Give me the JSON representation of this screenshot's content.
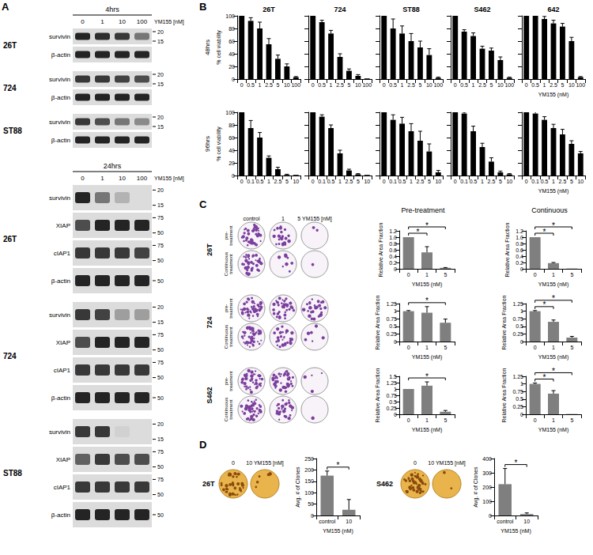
{
  "panel_a": {
    "letter": "A",
    "blocks": [
      {
        "time": "4hrs",
        "doses": [
          "0",
          "1",
          "10",
          "100"
        ],
        "unit": "YM155 [nM]",
        "groups": [
          {
            "cell": "26T",
            "rows": [
              {
                "protein": "survivin",
                "markers": [
                  "20",
                  "15"
                ],
                "bands": [
                  0.9,
                  0.85,
                  0.8,
                  0.5
                ]
              },
              {
                "protein": "β-actin",
                "markers": [],
                "bands": [
                  0.9,
                  0.9,
                  0.9,
                  0.9
                ]
              }
            ]
          },
          {
            "cell": "724",
            "rows": [
              {
                "protein": "survivin",
                "markers": [
                  "20",
                  "15"
                ],
                "bands": [
                  0.8,
                  0.8,
                  0.75,
                  0.7
                ]
              },
              {
                "protein": "β-actin",
                "markers": [],
                "bands": [
                  0.9,
                  0.9,
                  0.9,
                  0.9
                ]
              }
            ]
          },
          {
            "cell": "ST88",
            "rows": [
              {
                "protein": "survivin",
                "markers": [
                  "20",
                  "15"
                ],
                "bands": [
                  0.8,
                  0.7,
                  0.5,
                  0.4
                ]
              },
              {
                "protein": "β-actin",
                "markers": [],
                "bands": [
                  0.9,
                  0.9,
                  0.9,
                  0.9
                ]
              }
            ]
          }
        ]
      },
      {
        "time": "24hrs",
        "doses": [
          "0",
          "1",
          "10",
          "100"
        ],
        "unit": "YM155 [nM]",
        "groups": [
          {
            "cell": "26T",
            "rows": [
              {
                "protein": "survivin",
                "markers": [
                  "20",
                  "15"
                ],
                "bands": [
                  0.9,
                  0.5,
                  0.2,
                  0.0
                ]
              },
              {
                "protein": "XIAP",
                "markers": [
                  "75",
                  "50"
                ],
                "bands": [
                  0.7,
                  0.9,
                  0.9,
                  0.9
                ]
              },
              {
                "protein": "cIAP1",
                "markers": [
                  "75",
                  "50"
                ],
                "bands": [
                  0.8,
                  0.8,
                  0.8,
                  0.75
                ]
              },
              {
                "protein": "β-actin",
                "markers": [
                  "50"
                ],
                "bands": [
                  0.9,
                  0.9,
                  0.9,
                  0.9
                ]
              }
            ]
          },
          {
            "cell": "724",
            "rows": [
              {
                "protein": "survivin",
                "markers": [
                  "20",
                  "15"
                ],
                "bands": [
                  0.8,
                  0.75,
                  0.3,
                  0.3
                ]
              },
              {
                "protein": "XIAP",
                "markers": [
                  "75",
                  "50"
                ],
                "bands": [
                  0.7,
                  0.9,
                  0.9,
                  0.9
                ]
              },
              {
                "protein": "cIAP1",
                "markers": [
                  "75",
                  "50"
                ],
                "bands": [
                  0.8,
                  0.8,
                  0.8,
                  0.8
                ]
              },
              {
                "protein": "β-actin",
                "markers": [
                  "50"
                ],
                "bands": [
                  0.9,
                  0.9,
                  0.9,
                  0.9
                ]
              }
            ]
          },
          {
            "cell": "ST88",
            "rows": [
              {
                "protein": "survivin",
                "markers": [
                  "20",
                  "15"
                ],
                "bands": [
                  0.8,
                  0.8,
                  0.05,
                  0.0
                ]
              },
              {
                "protein": "XIAP",
                "markers": [
                  "75",
                  "50"
                ],
                "bands": [
                  0.6,
                  0.8,
                  0.7,
                  0.7
                ]
              },
              {
                "protein": "cIAP1",
                "markers": [
                  "75",
                  "50"
                ],
                "bands": [
                  0.8,
                  0.8,
                  0.8,
                  0.8
                ]
              },
              {
                "protein": "β-actin",
                "markers": [
                  "50"
                ],
                "bands": [
                  0.9,
                  0.9,
                  0.9,
                  0.9
                ]
              }
            ]
          }
        ]
      }
    ]
  },
  "panel_b": {
    "letter": "B",
    "row_labels": [
      "48hrs",
      "96hrs"
    ]
  },
  "panel_c": {
    "letter": "C",
    "doses": [
      "control",
      "1",
      "5"
    ],
    "unit": "YM155 [nM]",
    "cells": [
      "26T",
      "724",
      "S462"
    ],
    "treatments": [
      "pre-treatment",
      "Continuous treatment"
    ],
    "chart_headers": [
      "Pre-treatment",
      "Continuous"
    ]
  },
  "panel_d": {
    "letter": "D",
    "doses": [
      "0",
      "10"
    ],
    "unit": "YM155 [nM]",
    "cells": [
      "26T",
      "S462"
    ]
  },
  "chart_data": [
    {
      "type": "bar",
      "title": "26T",
      "categories": [
        "0",
        "0.5",
        "1",
        "2.5",
        "5",
        "10",
        "100"
      ],
      "values": [
        100,
        92,
        80,
        55,
        32,
        20,
        3
      ],
      "errors": [
        0,
        5,
        10,
        9,
        6,
        4,
        1
      ],
      "color": "#000000",
      "ylim": [
        0,
        100
      ],
      "yticks": [
        0,
        20,
        40,
        60,
        80,
        100
      ],
      "ylabel": "% cell viability"
    },
    {
      "type": "bar",
      "title": "724",
      "categories": [
        "0",
        "0.5",
        "1",
        "2.5",
        "5",
        "10",
        "100"
      ],
      "values": [
        100,
        90,
        72,
        35,
        13,
        5,
        1
      ],
      "errors": [
        0,
        3,
        5,
        5,
        3,
        2,
        0
      ],
      "color": "#000000",
      "ylim": [
        0,
        100
      ],
      "yticks": [
        0,
        20,
        40,
        60,
        80,
        100
      ],
      "tick_labels": "x"
    },
    {
      "type": "bar",
      "title": "ST88",
      "categories": [
        "0",
        "0.5",
        "1",
        "2.5",
        "5",
        "10",
        "100"
      ],
      "values": [
        100,
        80,
        72,
        60,
        50,
        38,
        2
      ],
      "errors": [
        0,
        15,
        12,
        12,
        10,
        10,
        1
      ],
      "color": "#000000",
      "ylim": [
        0,
        100
      ],
      "yticks": [
        0,
        20,
        40,
        60,
        80,
        100
      ],
      "tick_labels": "x"
    },
    {
      "type": "bar",
      "title": "S462",
      "categories": [
        "0",
        "0.5",
        "1",
        "2.5",
        "5",
        "10",
        "100"
      ],
      "values": [
        100,
        75,
        68,
        48,
        45,
        30,
        2
      ],
      "errors": [
        0,
        3,
        5,
        4,
        4,
        5,
        1
      ],
      "color": "#000000",
      "ylim": [
        0,
        100
      ],
      "yticks": [
        0,
        20,
        40,
        60,
        80,
        100
      ],
      "tick_labels": "x"
    },
    {
      "type": "bar",
      "title": "642",
      "categories": [
        "0",
        "0.5",
        "1",
        "2.5",
        "5",
        "10",
        "100"
      ],
      "values": [
        100,
        100,
        95,
        88,
        83,
        60,
        3
      ],
      "errors": [
        0,
        6,
        4,
        5,
        5,
        6,
        1
      ],
      "color": "#000000",
      "ylim": [
        0,
        100
      ],
      "yticks": [
        0,
        20,
        40,
        60,
        80,
        100
      ],
      "tick_labels": "x",
      "xlabel": "YM155 (nM)"
    },
    {
      "type": "bar",
      "categories": [
        "0",
        "0.1",
        "0.5",
        "1",
        "2.5",
        "5",
        "10"
      ],
      "values": [
        100,
        75,
        60,
        28,
        10,
        1,
        1
      ],
      "errors": [
        0,
        12,
        8,
        3,
        3,
        1,
        0
      ],
      "color": "#000000",
      "ylim": [
        0,
        100
      ],
      "yticks": [
        0,
        20,
        40,
        60,
        80,
        100
      ],
      "ylabel": "% cell viability"
    },
    {
      "type": "bar",
      "categories": [
        "0",
        "0.1",
        "0.5",
        "1",
        "2.5",
        "5",
        "10"
      ],
      "values": [
        100,
        93,
        75,
        35,
        8,
        2,
        1
      ],
      "errors": [
        0,
        3,
        5,
        5,
        2,
        1,
        0
      ],
      "color": "#000000",
      "ylim": [
        0,
        100
      ],
      "yticks": [
        0,
        20,
        40,
        60,
        80,
        100
      ],
      "tick_labels": "x"
    },
    {
      "type": "bar",
      "categories": [
        "0",
        "0.1",
        "0.5",
        "1",
        "2.5",
        "5",
        "10"
      ],
      "values": [
        100,
        88,
        82,
        70,
        55,
        38,
        5
      ],
      "errors": [
        0,
        8,
        10,
        12,
        15,
        12,
        3
      ],
      "color": "#000000",
      "ylim": [
        0,
        100
      ],
      "yticks": [
        0,
        20,
        40,
        60,
        80,
        100
      ],
      "tick_labels": "x"
    },
    {
      "type": "bar",
      "categories": [
        "0",
        "0.1",
        "0.5",
        "1",
        "2.5",
        "5",
        "10"
      ],
      "values": [
        100,
        98,
        70,
        45,
        22,
        5,
        2
      ],
      "errors": [
        0,
        2,
        8,
        6,
        6,
        2,
        1
      ],
      "color": "#000000",
      "ylim": [
        0,
        100
      ],
      "yticks": [
        0,
        20,
        40,
        60,
        80,
        100
      ],
      "tick_labels": "x"
    },
    {
      "type": "bar",
      "categories": [
        "0",
        "0.1",
        "0.5",
        "1",
        "2.5",
        "5",
        "10"
      ],
      "values": [
        100,
        98,
        88,
        75,
        65,
        50,
        35
      ],
      "errors": [
        0,
        3,
        5,
        6,
        8,
        5,
        3
      ],
      "color": "#000000",
      "ylim": [
        0,
        100
      ],
      "yticks": [
        0,
        20,
        40,
        60,
        80,
        100
      ],
      "tick_labels": "x",
      "xlabel": "YM155 (nM)"
    },
    {
      "type": "bar",
      "categories": [
        "0",
        "1",
        "5"
      ],
      "values": [
        1,
        0.52,
        0.03
      ],
      "errors": [
        0,
        0.18,
        0.01
      ],
      "color": "#7f7f7f",
      "ylim": [
        0,
        1.2
      ],
      "yticks": [
        0,
        0.2,
        0.4,
        0.6,
        0.8,
        {
          "value": 1,
          "label": "1.0"
        },
        1.2
      ],
      "ylabel": "Relative Area Fraction",
      "xlabel": "YM155 (nM)",
      "annotations": [
        {
          "from": "0",
          "to": "1",
          "label": "*"
        },
        {
          "from": "0",
          "to": "5",
          "label": "*"
        }
      ]
    },
    {
      "type": "bar",
      "categories": [
        "0",
        "1",
        "5"
      ],
      "values": [
        1,
        0.18,
        0.01
      ],
      "errors": [
        0,
        0.02,
        0
      ],
      "color": "#7f7f7f",
      "ylim": [
        0,
        1.2
      ],
      "yticks": [
        0,
        0.2,
        0.4,
        0.6,
        0.8,
        {
          "value": 1,
          "label": "1.0"
        },
        1.2
      ],
      "ylabel": "Relative Area Fraction",
      "xlabel": "YM155 (nM)",
      "annotations": [
        {
          "from": "0",
          "to": "1",
          "label": "*"
        },
        {
          "from": "0",
          "to": "5",
          "label": "*"
        }
      ]
    },
    {
      "type": "bar",
      "categories": [
        "0",
        "1",
        "5"
      ],
      "values": [
        1,
        0.95,
        0.62
      ],
      "errors": [
        0.02,
        0.2,
        0.12
      ],
      "color": "#7f7f7f",
      "ylim": [
        0,
        1.25
      ],
      "yticks": [
        0,
        0.25,
        0.5,
        0.75,
        1,
        1.25
      ],
      "ylabel": "Relative Area Fraction",
      "xlabel": "YM155 (nM)",
      "annotations": [
        {
          "from": "0",
          "to": "5",
          "label": "*"
        }
      ]
    },
    {
      "type": "bar",
      "categories": [
        "0",
        "1",
        "5"
      ],
      "values": [
        1,
        0.65,
        0.13
      ],
      "errors": [
        0.02,
        0.06,
        0.04
      ],
      "color": "#7f7f7f",
      "ylim": [
        0,
        1.25
      ],
      "yticks": [
        0,
        0.25,
        0.5,
        0.75,
        1,
        1.25
      ],
      "ylabel": "Relative Area Fraction",
      "xlabel": "YM155 (nM)",
      "annotations": [
        {
          "from": "0",
          "to": "1",
          "label": "*"
        },
        {
          "from": "0",
          "to": "5",
          "label": "*"
        }
      ]
    },
    {
      "type": "bar",
      "categories": [
        "0",
        "1",
        "5"
      ],
      "values": [
        1,
        1.13,
        0.1
      ],
      "errors": [
        0,
        0.15,
        0.05
      ],
      "color": "#7f7f7f",
      "ylim": [
        0,
        1.5
      ],
      "yticks": [
        0,
        0.25,
        0.5,
        0.75,
        1,
        1.25,
        1.5
      ],
      "ylabel": "Relative Area Fraction",
      "xlabel": "YM155 (nM)",
      "annotations": [
        {
          "from": "0",
          "to": "5",
          "label": "*"
        }
      ]
    },
    {
      "type": "bar",
      "categories": [
        "0",
        "1",
        "5"
      ],
      "values": [
        1,
        0.68,
        0.01
      ],
      "errors": [
        0.03,
        0.1,
        0
      ],
      "color": "#7f7f7f",
      "ylim": [
        0,
        1.25
      ],
      "yticks": [
        0,
        0.25,
        0.5,
        0.75,
        1,
        1.25
      ],
      "ylabel": "Relative Area Fraction",
      "xlabel": "YM155 (nM)",
      "annotations": [
        {
          "from": "0",
          "to": "1",
          "label": "*"
        },
        {
          "from": "0",
          "to": "5",
          "label": "*"
        }
      ]
    },
    {
      "type": "bar",
      "categories": [
        "control",
        "10"
      ],
      "values": [
        175,
        25
      ],
      "errors": [
        20,
        45
      ],
      "color": "#7f7f7f",
      "ylim": [
        0,
        250
      ],
      "yticks": [
        0,
        50,
        100,
        150,
        200,
        250
      ],
      "ylabel": "Avg. # of Clones",
      "xlabel": "YM155 (nM)",
      "annotations": [
        {
          "from": "control",
          "to": "10",
          "label": "*"
        }
      ]
    },
    {
      "type": "bar",
      "categories": [
        "control",
        "10"
      ],
      "values": [
        220,
        10
      ],
      "errors": [
        110,
        8
      ],
      "color": "#7f7f7f",
      "ylim": [
        0,
        400
      ],
      "yticks": [
        0,
        100,
        200,
        300,
        400
      ],
      "ylabel": "Avg. # of Clones",
      "xlabel": "YM155 (nM)",
      "annotations": [
        {
          "from": "control",
          "to": "10",
          "label": "*"
        }
      ]
    }
  ]
}
